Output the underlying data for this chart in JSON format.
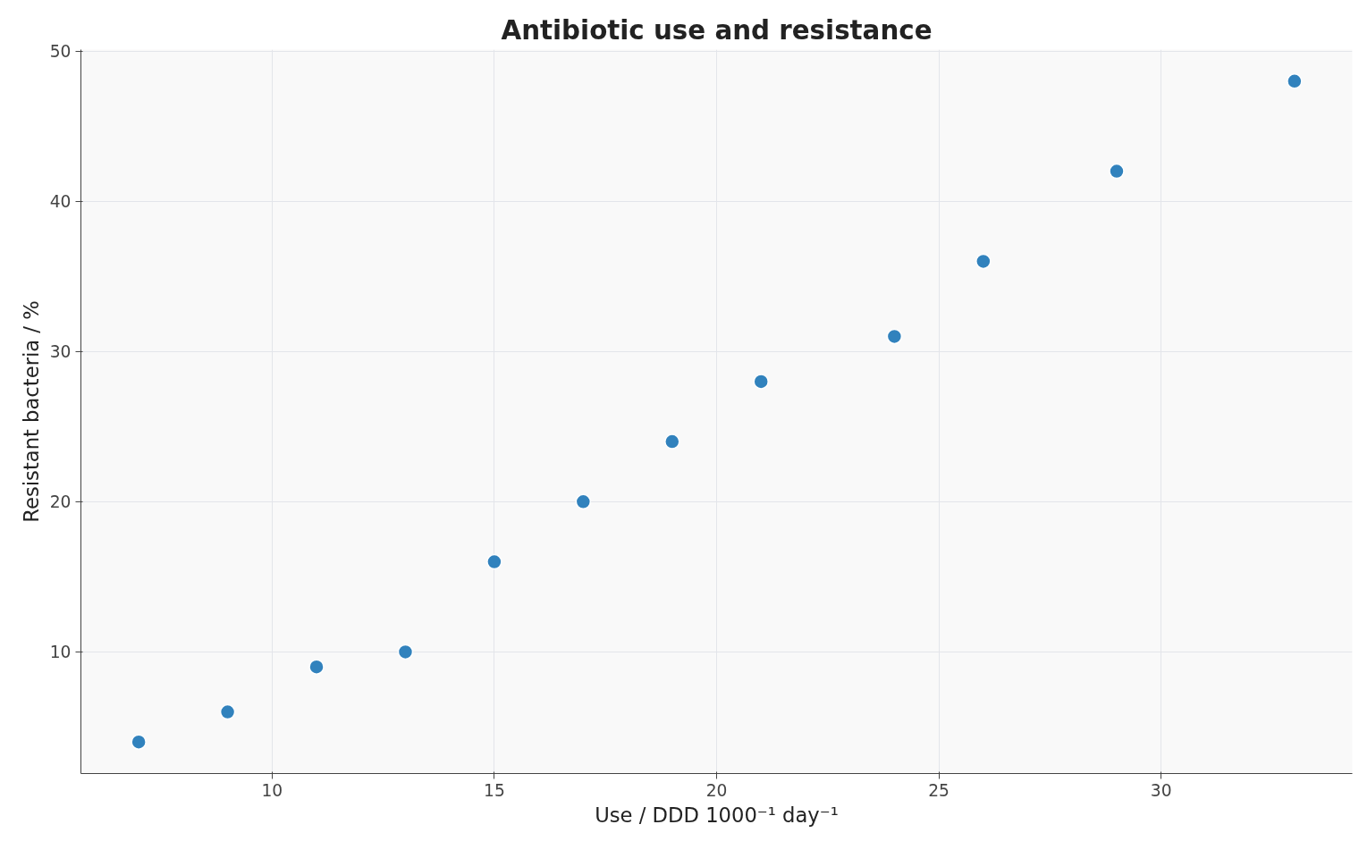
{
  "chart_data": {
    "type": "scatter",
    "title": "Antibiotic use and resistance",
    "xlabel": "Use / DDD 1000⁻¹ day⁻¹",
    "ylabel": "Resistant bacteria / %",
    "x": [
      7,
      9,
      11,
      13,
      15,
      17,
      19,
      21,
      24,
      26,
      29,
      33
    ],
    "series": [
      {
        "color": "#3182bd",
        "values": [
          4,
          6,
          9,
          10,
          16,
          20,
          24,
          28,
          31,
          36,
          42,
          48
        ]
      }
    ],
    "xlim": [
      5.7,
      34.3
    ],
    "ylim": [
      1.9,
      50.1
    ],
    "xticks": [
      10,
      15,
      20,
      25,
      30
    ],
    "yticks": [
      10,
      20,
      30,
      40,
      50
    ],
    "grid": true,
    "marker": "circle"
  }
}
